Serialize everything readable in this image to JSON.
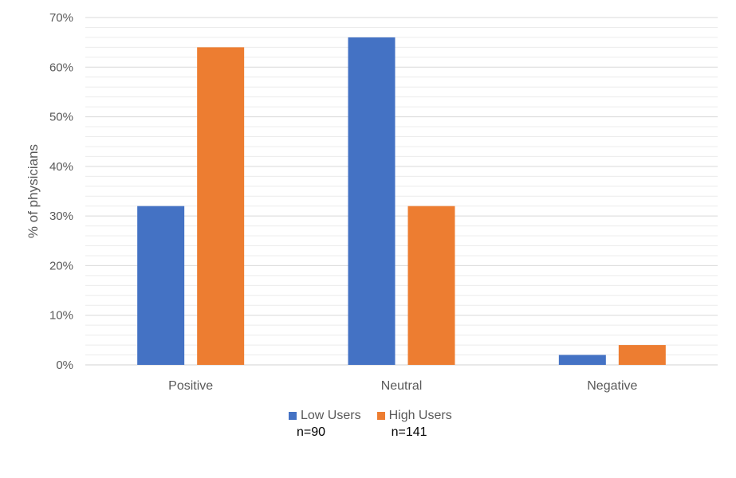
{
  "chart_data": {
    "type": "bar",
    "title": "",
    "xlabel": "",
    "ylabel": "% of physicians",
    "categories": [
      "Positive",
      "Neutral",
      "Negative"
    ],
    "series": [
      {
        "name": "Low Users",
        "note": "n=90",
        "color": "#4472C4",
        "values": [
          32,
          66,
          2
        ]
      },
      {
        "name": "High Users",
        "note": "n=141",
        "color": "#ED7D31",
        "values": [
          64,
          32,
          4
        ]
      }
    ],
    "ylim": [
      0,
      70
    ],
    "yticks": [
      "0%",
      "10%",
      "20%",
      "30%",
      "40%",
      "50%",
      "60%",
      "70%"
    ],
    "grid": true,
    "legend_position": "bottom"
  }
}
